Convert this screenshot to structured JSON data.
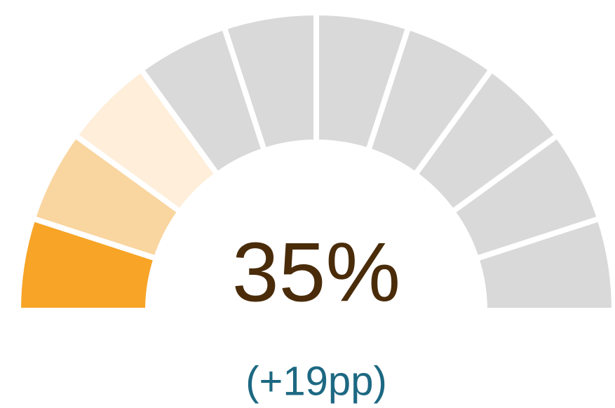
{
  "chart_data": {
    "type": "gauge",
    "value": 35,
    "value_label": "35%",
    "annotation": "(+19pp)",
    "segment_colors": [
      "#f7a427",
      "#f9d59f",
      "#feeeda",
      "#d9d9d9",
      "#d9d9d9",
      "#d9d9d9",
      "#d9d9d9",
      "#d9d9d9",
      "#d9d9d9",
      "#d9d9d9"
    ],
    "value_color": "#4a2c0a",
    "annotation_color": "#1d6882"
  }
}
